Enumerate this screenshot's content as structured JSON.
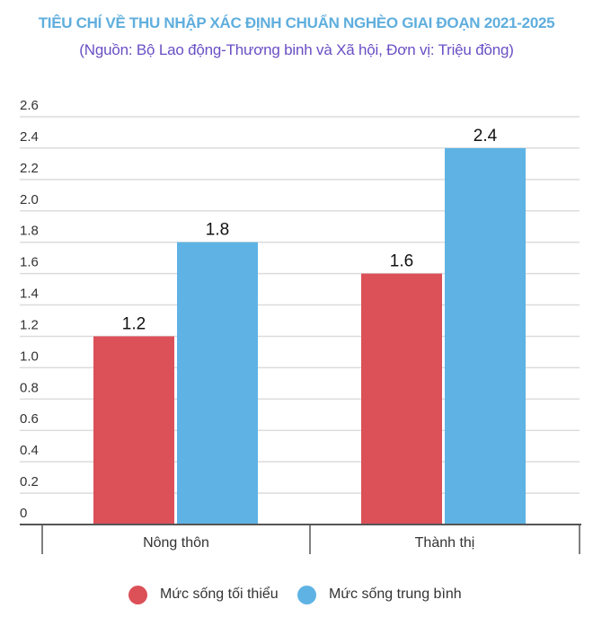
{
  "header": {
    "title": "TIÊU CHÍ VỀ THU NHẬP XÁC ĐỊNH CHUẨN NGHÈO GIAI ĐOẠN 2021-2025",
    "subtitle": "(Nguồn: Bộ Lao động-Thương binh và Xã hội, Đơn vị: Triệu đồng)",
    "title_color": "#5FAEDD",
    "subtitle_color": "#6A4FC4"
  },
  "legend": {
    "items": [
      {
        "label": "Mức sống tối thiểu",
        "color": "#DC5058"
      },
      {
        "label": "Mức sống trung bình",
        "color": "#5EB3E4"
      }
    ]
  },
  "chart_data": {
    "type": "bar",
    "title": "TIÊU CHÍ VỀ THU NHẬP XÁC ĐỊNH CHUẨN NGHÈO GIAI ĐOẠN 2021-2025",
    "subtitle": "(Nguồn: Bộ Lao động-Thương binh và Xã hội, Đơn vị: Triệu đồng)",
    "categories": [
      "Nông thôn",
      "Thành thị"
    ],
    "series": [
      {
        "name": "Mức sống tối thiểu",
        "values": [
          1.2,
          1.6
        ],
        "color": "#DC5058"
      },
      {
        "name": "Mức sống trung bình",
        "values": [
          1.8,
          2.4
        ],
        "color": "#5EB3E4"
      }
    ],
    "data_labels": [
      [
        "1.2",
        "1.6"
      ],
      [
        "1.8",
        "2.4"
      ]
    ],
    "xlabel": "",
    "ylabel": "",
    "ylim": [
      0,
      2.6
    ],
    "yticks": [
      0,
      0.2,
      0.4,
      0.6,
      0.8,
      1.0,
      1.2,
      1.4,
      1.6,
      1.8,
      2.0,
      2.2,
      2.4,
      2.6
    ],
    "ytick_labels": [
      "0",
      "0.2",
      "0.4",
      "0.6",
      "0.8",
      "1.0",
      "1.2",
      "1.4",
      "1.6",
      "1.8",
      "2.0",
      "2.2",
      "2.4",
      "2.6"
    ],
    "grid": true,
    "legend_position": "bottom"
  }
}
